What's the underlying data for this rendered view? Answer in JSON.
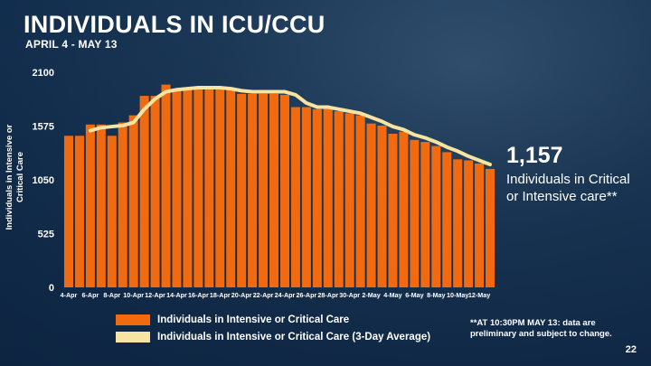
{
  "slide": {
    "title": "INDIVIDUALS IN ICU/CCU",
    "subtitle": "APRIL 4 - MAY 13",
    "page_number": "22"
  },
  "callout": {
    "value": "1,157",
    "text": "Individuals in Critical or Intensive care**"
  },
  "legend": {
    "bars": "Individuals in Intensive or Critical Care",
    "line": "Individuals in Intensive or Critical Care (3-Day Average)"
  },
  "footnote": "**AT 10:30PM MAY 13: data are preliminary and subject to change.",
  "colors": {
    "bar": "#f26a10",
    "line": "#f7e4a2"
  },
  "chart_data": {
    "type": "bar",
    "title": "INDIVIDUALS IN ICU/CCU",
    "ylabel": "Individuals in Intensive or Critical Care",
    "ylim": [
      0,
      2100
    ],
    "yticks": [
      0,
      525,
      1050,
      1575,
      2100
    ],
    "grid": false,
    "xtick_labels": [
      "4-Apr",
      "6-Apr",
      "8-Apr",
      "10-Apr",
      "12-Apr",
      "14-Apr",
      "16-Apr",
      "18-Apr",
      "20-Apr",
      "22-Apr",
      "24-Apr",
      "26-Apr",
      "28-Apr",
      "30-Apr",
      "2-May",
      "4-May",
      "6-May",
      "8-May",
      "10-May",
      "12-May"
    ],
    "categories": [
      "4-Apr",
      "5-Apr",
      "6-Apr",
      "7-Apr",
      "8-Apr",
      "9-Apr",
      "10-Apr",
      "11-Apr",
      "12-Apr",
      "13-Apr",
      "14-Apr",
      "15-Apr",
      "16-Apr",
      "17-Apr",
      "18-Apr",
      "19-Apr",
      "20-Apr",
      "21-Apr",
      "22-Apr",
      "23-Apr",
      "24-Apr",
      "25-Apr",
      "26-Apr",
      "27-Apr",
      "28-Apr",
      "29-Apr",
      "30-Apr",
      "1-May",
      "2-May",
      "3-May",
      "4-May",
      "5-May",
      "6-May",
      "7-May",
      "8-May",
      "9-May",
      "10-May",
      "11-May",
      "12-May",
      "13-May"
    ],
    "series": [
      {
        "name": "Individuals in Intensive or Critical Care",
        "type": "bar",
        "values": [
          1480,
          1480,
          1590,
          1590,
          1480,
          1610,
          1680,
          1870,
          1870,
          1980,
          1940,
          1940,
          1960,
          1950,
          1940,
          1940,
          1890,
          1890,
          1890,
          1890,
          1880,
          1760,
          1760,
          1740,
          1750,
          1720,
          1700,
          1680,
          1600,
          1580,
          1500,
          1520,
          1440,
          1420,
          1380,
          1320,
          1250,
          1240,
          1210,
          1157
        ]
      },
      {
        "name": "Individuals in Intensive or Critical Care (3-Day Average)",
        "type": "line",
        "values": [
          null,
          null,
          1530,
          1560,
          1570,
          1580,
          1610,
          1740,
          1840,
          1910,
          1930,
          1940,
          1950,
          1950,
          1950,
          1940,
          1920,
          1910,
          1910,
          1910,
          1910,
          1880,
          1800,
          1760,
          1760,
          1740,
          1720,
          1700,
          1660,
          1620,
          1570,
          1540,
          1490,
          1460,
          1420,
          1370,
          1330,
          1280,
          1240,
          1200
        ]
      }
    ]
  }
}
